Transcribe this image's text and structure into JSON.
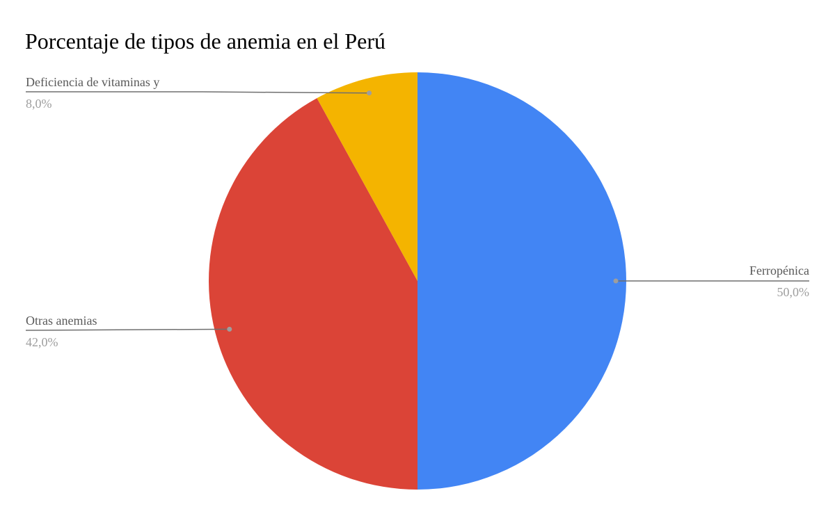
{
  "chart_data": {
    "type": "pie",
    "title": "Porcentaje de tipos de anemia en el Perú",
    "slices": [
      {
        "label": "Ferropénica",
        "value": 50.0,
        "value_label": "50,0%",
        "color": "#4285F4"
      },
      {
        "label": "Otras anemias",
        "value": 42.0,
        "value_label": "42,0%",
        "color": "#DB4437"
      },
      {
        "label": "Deficiencia de vitaminas y",
        "value": 8.0,
        "value_label": "8,0%",
        "color": "#F4B400"
      }
    ],
    "legend": "none"
  }
}
